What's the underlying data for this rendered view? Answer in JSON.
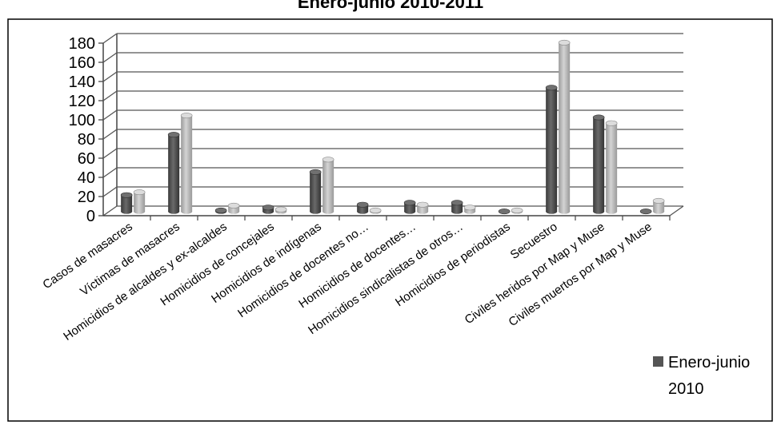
{
  "chart_data": {
    "type": "bar",
    "title": "Enero-junio 2010-2011",
    "categories": [
      "Casos de masacres",
      "Víctimas de masacres",
      "Homicidios de alcaldes y ex-alcaldes",
      "Homicidios de concejales",
      "Homicidios de indígenas",
      "Homicidios de docentes no…",
      "Homicidios de docentes…",
      "Homicidios sindicalistas de otros…",
      "Homicidios de periodistas",
      "Secuestro",
      "Civiles heridos por Map y Muse",
      "Civiles muertos por Map y Muse"
    ],
    "series": [
      {
        "name": "Enero-junio 2010",
        "color": "#555555",
        "values": [
          17,
          80,
          1,
          4,
          41,
          7,
          9,
          9,
          0,
          129,
          98,
          0
        ]
      },
      {
        "values": [
          20,
          100,
          6,
          2,
          54,
          1,
          7,
          4,
          1,
          176,
          92,
          11
        ],
        "color": "#b5b5b5"
      }
    ],
    "yticks": [
      "0",
      "20",
      "40",
      "60",
      "80",
      "100",
      "120",
      "140",
      "160",
      "180"
    ],
    "ylim": [
      0,
      180
    ],
    "grid": true,
    "legend": {
      "position": "bottom-right",
      "label_line1": "Enero-junio",
      "label_line2": "2010"
    }
  }
}
